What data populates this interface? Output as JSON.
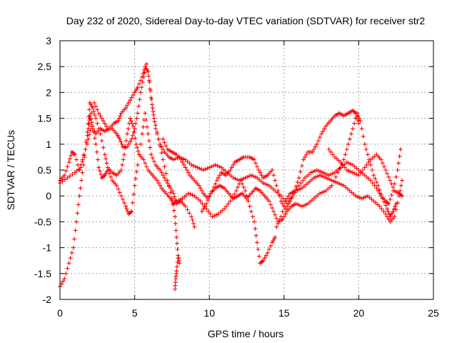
{
  "chart_data": {
    "type": "scatter",
    "title": "Day 232 of 2020, Sidereal Day-to-day VTEC variation (SDTVAR) for receiver str2",
    "xlabel": "GPS time / hours",
    "ylabel": "SDTVAR / TECUs",
    "xlim": [
      0,
      25
    ],
    "ylim": [
      -2,
      3
    ],
    "xticks": [
      0,
      5,
      10,
      15,
      20,
      25
    ],
    "yticks": [
      -2,
      -1.5,
      -1,
      -0.5,
      0,
      0.5,
      1,
      1.5,
      2,
      2.5,
      3
    ],
    "xtick_labels": [
      "0",
      "5",
      "10",
      "15",
      "20",
      "25"
    ],
    "ytick_labels": [
      "-2",
      "-1.5",
      "-1",
      "-0.5",
      "0",
      "0.5",
      "1",
      "1.5",
      "2",
      "2.5",
      "3"
    ],
    "grid": true,
    "marker": "+",
    "color": "#ff0000",
    "traces": [
      [
        [
          0,
          -1.75
        ],
        [
          0.3,
          -1.6
        ],
        [
          0.6,
          -1.3
        ],
        [
          0.9,
          -1.0
        ],
        [
          1.1,
          -0.5
        ],
        [
          1.3,
          0.0
        ],
        [
          1.5,
          0.45
        ],
        [
          1.7,
          0.9
        ],
        [
          1.9,
          1.3
        ],
        [
          2.0,
          1.55
        ],
        [
          2.2,
          1.35
        ],
        [
          2.4,
          1.0
        ],
        [
          2.6,
          0.55
        ],
        [
          2.8,
          0.35
        ],
        [
          3.0,
          0.4
        ],
        [
          3.2,
          0.5
        ],
        [
          3.5,
          0.3
        ],
        [
          3.8,
          0.2
        ],
        [
          4.1,
          0.0
        ],
        [
          4.4,
          -0.2
        ],
        [
          4.6,
          -0.35
        ],
        [
          4.8,
          -0.3
        ],
        [
          5.0,
          0.2
        ],
        [
          5.2,
          0.6
        ],
        [
          5.5,
          1.2
        ],
        [
          5.7,
          1.6
        ],
        [
          5.9,
          1.2
        ],
        [
          6.1,
          0.8
        ],
        [
          6.4,
          0.6
        ],
        [
          6.7,
          0.5
        ],
        [
          7.0,
          0.35
        ],
        [
          7.3,
          0.2
        ],
        [
          7.6,
          0.05
        ],
        [
          7.8,
          -0.15
        ],
        [
          8.1,
          -0.1
        ],
        [
          8.4,
          -0.2
        ],
        [
          8.8,
          -0.4
        ],
        [
          9.0,
          -0.6
        ]
      ],
      [
        [
          0,
          0.3
        ],
        [
          0.3,
          0.4
        ],
        [
          0.6,
          0.65
        ],
        [
          0.8,
          0.85
        ],
        [
          1.0,
          0.8
        ],
        [
          1.3,
          0.5
        ],
        [
          1.6,
          0.8
        ],
        [
          1.9,
          1.1
        ],
        [
          2.1,
          1.35
        ],
        [
          2.4,
          1.2
        ],
        [
          2.7,
          1.3
        ],
        [
          3.0,
          1.25
        ],
        [
          3.3,
          1.3
        ],
        [
          3.6,
          1.4
        ],
        [
          3.9,
          1.45
        ],
        [
          4.1,
          1.6
        ],
        [
          4.4,
          1.7
        ],
        [
          4.7,
          1.85
        ],
        [
          5.0,
          2.0
        ],
        [
          5.2,
          2.1
        ],
        [
          5.5,
          2.3
        ],
        [
          5.7,
          2.5
        ],
        [
          5.9,
          2.4
        ],
        [
          6.1,
          1.9
        ],
        [
          6.3,
          1.5
        ],
        [
          6.6,
          1.1
        ],
        [
          6.9,
          0.7
        ],
        [
          7.2,
          0.3
        ],
        [
          7.5,
          -0.05
        ],
        [
          7.7,
          -0.4
        ],
        [
          7.8,
          -0.8
        ],
        [
          7.9,
          -1.15
        ],
        [
          8.0,
          -1.3
        ]
      ],
      [
        [
          0,
          0.25
        ],
        [
          0.5,
          0.35
        ],
        [
          1.0,
          0.45
        ],
        [
          1.4,
          0.55
        ],
        [
          1.7,
          0.9
        ],
        [
          1.9,
          1.4
        ],
        [
          2.0,
          1.8
        ],
        [
          2.2,
          1.7
        ],
        [
          2.4,
          1.5
        ],
        [
          2.7,
          1.2
        ],
        [
          3.0,
          0.8
        ],
        [
          3.2,
          0.55
        ],
        [
          3.5,
          0.45
        ],
        [
          3.8,
          0.4
        ],
        [
          4.1,
          0.5
        ],
        [
          4.3,
          0.8
        ],
        [
          4.5,
          1.2
        ],
        [
          4.7,
          1.5
        ],
        [
          4.9,
          1.35
        ],
        [
          5.1,
          1.0
        ],
        [
          5.3,
          0.8
        ],
        [
          5.6,
          0.7
        ],
        [
          5.9,
          0.5
        ],
        [
          6.2,
          0.4
        ],
        [
          6.5,
          0.3
        ],
        [
          6.8,
          0.15
        ],
        [
          7.1,
          0.05
        ],
        [
          7.4,
          -0.05
        ],
        [
          7.6,
          -0.15
        ],
        [
          7.8,
          -0.1
        ],
        [
          8.2,
          -0.05
        ],
        [
          8.6,
          0.05
        ],
        [
          9.0,
          0.0
        ],
        [
          9.4,
          -0.1
        ],
        [
          9.8,
          -0.25
        ],
        [
          10.2,
          -0.4
        ],
        [
          10.6,
          -0.35
        ],
        [
          11.0,
          -0.25
        ],
        [
          11.4,
          -0.1
        ],
        [
          11.8,
          0.1
        ],
        [
          12.1,
          0.3
        ],
        [
          12.4,
          0.1
        ],
        [
          12.7,
          -0.2
        ],
        [
          13.0,
          -0.5
        ],
        [
          13.2,
          -0.9
        ],
        [
          13.4,
          -1.3
        ],
        [
          13.6,
          -1.25
        ],
        [
          13.9,
          -1.1
        ],
        [
          14.2,
          -0.9
        ],
        [
          14.4,
          -0.8
        ]
      ],
      [
        [
          2.0,
          1.5
        ],
        [
          2.3,
          1.8
        ],
        [
          2.6,
          1.6
        ],
        [
          2.9,
          1.45
        ],
        [
          3.2,
          1.3
        ],
        [
          3.5,
          1.3
        ],
        [
          3.8,
          1.2
        ],
        [
          4.0,
          1.1
        ],
        [
          4.2,
          0.95
        ],
        [
          4.5,
          0.95
        ],
        [
          4.8,
          1.1
        ],
        [
          5.0,
          1.3
        ],
        [
          5.2,
          1.6
        ],
        [
          5.4,
          2.0
        ],
        [
          5.6,
          2.3
        ],
        [
          5.8,
          2.55
        ],
        [
          6.0,
          2.2
        ],
        [
          6.2,
          1.7
        ],
        [
          6.4,
          1.3
        ],
        [
          6.7,
          1.0
        ],
        [
          7.0,
          0.85
        ],
        [
          7.3,
          0.75
        ],
        [
          7.6,
          0.7
        ],
        [
          8.0,
          0.75
        ],
        [
          8.4,
          0.7
        ],
        [
          8.8,
          0.6
        ],
        [
          9.2,
          0.55
        ],
        [
          9.6,
          0.5
        ],
        [
          10.0,
          0.55
        ],
        [
          10.4,
          0.6
        ],
        [
          10.8,
          0.55
        ],
        [
          11.2,
          0.45
        ],
        [
          11.6,
          0.35
        ],
        [
          12.0,
          0.3
        ],
        [
          12.4,
          0.35
        ],
        [
          12.8,
          0.4
        ],
        [
          13.2,
          0.35
        ],
        [
          13.6,
          0.25
        ],
        [
          14.0,
          0.2
        ],
        [
          14.4,
          0.1
        ],
        [
          14.8,
          0.0
        ],
        [
          15.2,
          -0.15
        ],
        [
          15.6,
          0.0
        ],
        [
          16.0,
          0.2
        ],
        [
          16.4,
          0.35
        ],
        [
          16.8,
          0.45
        ],
        [
          17.2,
          0.5
        ],
        [
          17.6,
          0.45
        ],
        [
          18.0,
          0.4
        ],
        [
          18.4,
          0.45
        ],
        [
          18.8,
          0.55
        ],
        [
          19.2,
          0.65
        ],
        [
          19.6,
          0.6
        ],
        [
          20.0,
          0.5
        ],
        [
          20.4,
          0.4
        ],
        [
          20.8,
          0.3
        ],
        [
          21.2,
          0.15
        ],
        [
          21.5,
          0.0
        ],
        [
          21.8,
          -0.1
        ],
        [
          22.0,
          -0.15
        ],
        [
          22.3,
          0.1
        ],
        [
          22.6,
          0.5
        ],
        [
          22.8,
          0.9
        ]
      ],
      [
        [
          6.9,
          1.1
        ],
        [
          7.2,
          0.9
        ],
        [
          7.5,
          0.85
        ],
        [
          7.8,
          0.8
        ],
        [
          8.1,
          0.7
        ],
        [
          8.4,
          0.55
        ],
        [
          8.7,
          0.4
        ],
        [
          9.0,
          0.3
        ],
        [
          9.3,
          0.2
        ],
        [
          9.6,
          0.05
        ],
        [
          9.9,
          -0.05
        ],
        [
          10.2,
          0.1
        ],
        [
          10.5,
          0.3
        ],
        [
          10.8,
          0.45
        ],
        [
          11.1,
          0.4
        ],
        [
          11.4,
          0.5
        ],
        [
          11.7,
          0.65
        ],
        [
          12.0,
          0.7
        ],
        [
          12.3,
          0.75
        ],
        [
          12.7,
          0.75
        ],
        [
          13.0,
          0.7
        ],
        [
          13.3,
          0.5
        ],
        [
          13.6,
          0.35
        ],
        [
          13.9,
          0.4
        ],
        [
          14.2,
          0.5
        ],
        [
          14.5,
          0.2
        ],
        [
          14.8,
          -0.1
        ],
        [
          15.1,
          -0.25
        ],
        [
          15.4,
          -0.1
        ],
        [
          15.7,
          0.1
        ],
        [
          16.0,
          0.35
        ],
        [
          16.3,
          0.7
        ],
        [
          16.6,
          0.85
        ],
        [
          16.9,
          0.85
        ],
        [
          17.2,
          1.0
        ],
        [
          17.5,
          1.2
        ],
        [
          17.8,
          1.35
        ],
        [
          18.1,
          1.45
        ],
        [
          18.4,
          1.55
        ],
        [
          18.7,
          1.6
        ],
        [
          19.0,
          1.55
        ],
        [
          19.3,
          1.6
        ],
        [
          19.6,
          1.65
        ],
        [
          19.8,
          1.6
        ],
        [
          20.0,
          1.4
        ]
      ],
      [
        [
          9.5,
          -0.3
        ],
        [
          9.8,
          -0.15
        ],
        [
          10.1,
          0.05
        ],
        [
          10.4,
          0.15
        ],
        [
          10.7,
          0.2
        ],
        [
          11.0,
          0.15
        ],
        [
          11.3,
          0.05
        ],
        [
          11.6,
          -0.05
        ],
        [
          11.9,
          0.0
        ],
        [
          12.2,
          0.05
        ],
        [
          12.5,
          -0.05
        ],
        [
          12.8,
          0.05
        ],
        [
          13.1,
          0.15
        ],
        [
          13.4,
          0.1
        ],
        [
          13.7,
          0.0
        ],
        [
          14.0,
          -0.1
        ],
        [
          14.3,
          -0.3
        ],
        [
          14.6,
          -0.5
        ],
        [
          14.9,
          -0.45
        ],
        [
          15.2,
          -0.3
        ],
        [
          15.5,
          -0.2
        ],
        [
          15.8,
          -0.15
        ],
        [
          16.2,
          -0.2
        ],
        [
          16.6,
          -0.15
        ],
        [
          17.0,
          -0.05
        ],
        [
          17.4,
          0.05
        ],
        [
          17.8,
          0.1
        ],
        [
          18.2,
          0.2
        ],
        [
          18.6,
          0.45
        ],
        [
          19.0,
          0.7
        ],
        [
          19.3,
          1.0
        ],
        [
          19.6,
          1.3
        ],
        [
          19.9,
          1.6
        ],
        [
          20.1,
          1.45
        ],
        [
          20.4,
          1.0
        ],
        [
          20.7,
          0.7
        ],
        [
          21.0,
          0.4
        ],
        [
          21.3,
          0.2
        ],
        [
          21.6,
          -0.05
        ],
        [
          21.9,
          -0.25
        ],
        [
          22.1,
          -0.4
        ],
        [
          22.3,
          -0.3
        ],
        [
          22.5,
          -0.15
        ]
      ],
      [
        [
          14.5,
          -0.6
        ],
        [
          14.8,
          -0.4
        ],
        [
          15.1,
          -0.1
        ],
        [
          15.4,
          0.05
        ],
        [
          15.8,
          0.1
        ],
        [
          16.2,
          0.15
        ],
        [
          16.6,
          0.25
        ],
        [
          17.0,
          0.35
        ],
        [
          17.4,
          0.4
        ],
        [
          17.8,
          0.35
        ],
        [
          18.2,
          0.3
        ],
        [
          18.6,
          0.25
        ],
        [
          19.0,
          0.2
        ],
        [
          19.4,
          0.1
        ],
        [
          19.8,
          0.0
        ],
        [
          20.2,
          -0.05
        ],
        [
          20.6,
          0.0
        ],
        [
          21.0,
          -0.1
        ],
        [
          21.4,
          -0.2
        ],
        [
          21.8,
          -0.35
        ],
        [
          22.1,
          -0.5
        ],
        [
          22.4,
          -0.4
        ],
        [
          22.7,
          0.0
        ],
        [
          22.9,
          0.3
        ]
      ],
      [
        [
          18.0,
          0.9
        ],
        [
          18.4,
          0.75
        ],
        [
          18.8,
          0.65
        ],
        [
          19.2,
          0.5
        ],
        [
          19.6,
          0.45
        ],
        [
          20.0,
          0.4
        ],
        [
          20.4,
          0.55
        ],
        [
          20.8,
          0.7
        ],
        [
          21.2,
          0.8
        ],
        [
          21.5,
          0.7
        ],
        [
          21.8,
          0.5
        ],
        [
          22.1,
          0.3
        ],
        [
          22.4,
          0.1
        ],
        [
          22.7,
          0.05
        ],
        [
          22.9,
          0.0
        ]
      ],
      [
        [
          7.7,
          -1.8
        ],
        [
          7.75,
          -1.6
        ],
        [
          7.8,
          -1.45
        ],
        [
          7.9,
          -1.2
        ]
      ]
    ]
  }
}
